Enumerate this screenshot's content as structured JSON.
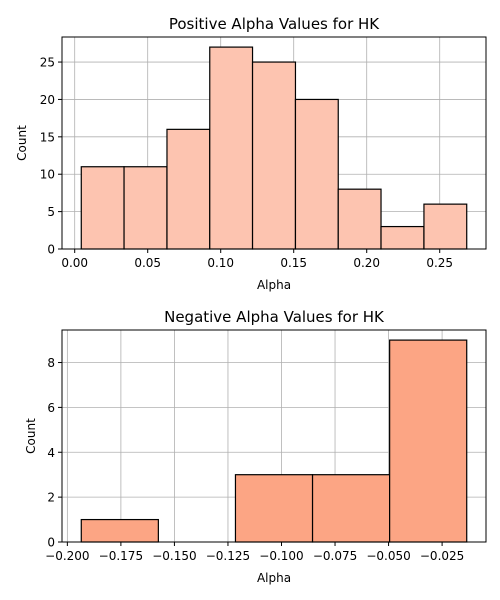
{
  "chart_data": [
    {
      "type": "bar",
      "title": "Positive Alpha Values for HK",
      "xlabel": "Alpha",
      "ylabel": "Count",
      "bin_edges": [
        0.0045,
        0.0338,
        0.0632,
        0.0925,
        0.1218,
        0.1512,
        0.1805,
        0.2098,
        0.2392,
        0.2685
      ],
      "values": [
        11,
        11,
        16,
        27,
        25,
        20,
        8,
        3,
        6
      ],
      "xlim": [
        -0.0087,
        0.2817
      ],
      "ylim": [
        0,
        28.35
      ],
      "xticks": [
        0.0,
        0.05,
        0.1,
        0.15,
        0.2,
        0.25
      ],
      "xtick_labels": [
        "0.00",
        "0.05",
        "0.10",
        "0.15",
        "0.20",
        "0.25"
      ],
      "yticks": [
        0,
        5,
        10,
        15,
        20,
        25
      ],
      "ytick_labels": [
        "0",
        "5",
        "10",
        "15",
        "20",
        "25"
      ],
      "grid": true,
      "color": "#fdc4b0"
    },
    {
      "type": "bar",
      "title": "Negative Alpha Values for HK",
      "xlabel": "Alpha",
      "ylabel": "Count",
      "bin_edges": [
        -0.1935,
        -0.1575,
        -0.1215,
        -0.0855,
        -0.0495,
        -0.0135
      ],
      "values": [
        1,
        0,
        3,
        3,
        9
      ],
      "xlim": [
        -0.2025,
        -0.0045
      ],
      "ylim": [
        0,
        9.45
      ],
      "xticks": [
        -0.2,
        -0.175,
        -0.15,
        -0.125,
        -0.1,
        -0.075,
        -0.05,
        -0.025
      ],
      "xtick_labels": [
        "−0.200",
        "−0.175",
        "−0.150",
        "−0.125",
        "−0.100",
        "−0.075",
        "−0.050",
        "−0.025"
      ],
      "yticks": [
        0,
        2,
        4,
        6,
        8
      ],
      "ytick_labels": [
        "0",
        "2",
        "4",
        "6",
        "8"
      ],
      "grid": true,
      "color": "#fca584"
    }
  ]
}
